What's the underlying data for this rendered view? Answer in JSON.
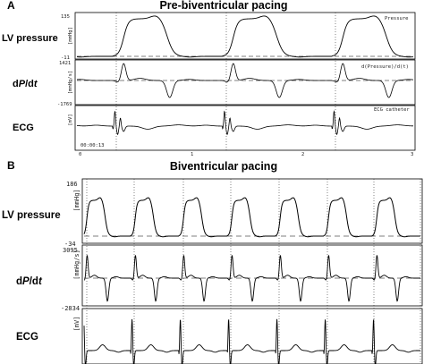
{
  "chart_data": [
    {
      "type": "line",
      "panel_letter": "A",
      "title": "Pre-biventricular pacing",
      "x_ticks": [
        "0",
        "1",
        "2",
        "3"
      ],
      "timestamp": "00:00:13",
      "channels": [
        {
          "label": "LV pressure",
          "unit": "[mmHg]",
          "top": "135",
          "bottom": "-11",
          "trace_label": "Pressure"
        },
        {
          "label_prefix": "d",
          "label_p": "P",
          "label_mid": "/d",
          "label_t": "t",
          "unit": "[mmHg/s]",
          "top": "1421",
          "bottom": "-1769",
          "trace_label": "d(Pressure)/d(t)"
        },
        {
          "label": "ECG",
          "unit": "[mV]",
          "trace_label": "ECG catheter"
        }
      ]
    },
    {
      "type": "line",
      "panel_letter": "B",
      "title": "Biventricular pacing",
      "channels": [
        {
          "label": "LV pressure",
          "unit": "[mmHg]",
          "top": "186",
          "bottom": "-34"
        },
        {
          "label_prefix": "d",
          "label_p": "P",
          "label_mid": "/d",
          "label_t": "t",
          "unit": "[mmHg/s]",
          "top": "3095",
          "bottom": "-2834"
        },
        {
          "label": "ECG",
          "unit": "[mV]"
        }
      ]
    }
  ]
}
